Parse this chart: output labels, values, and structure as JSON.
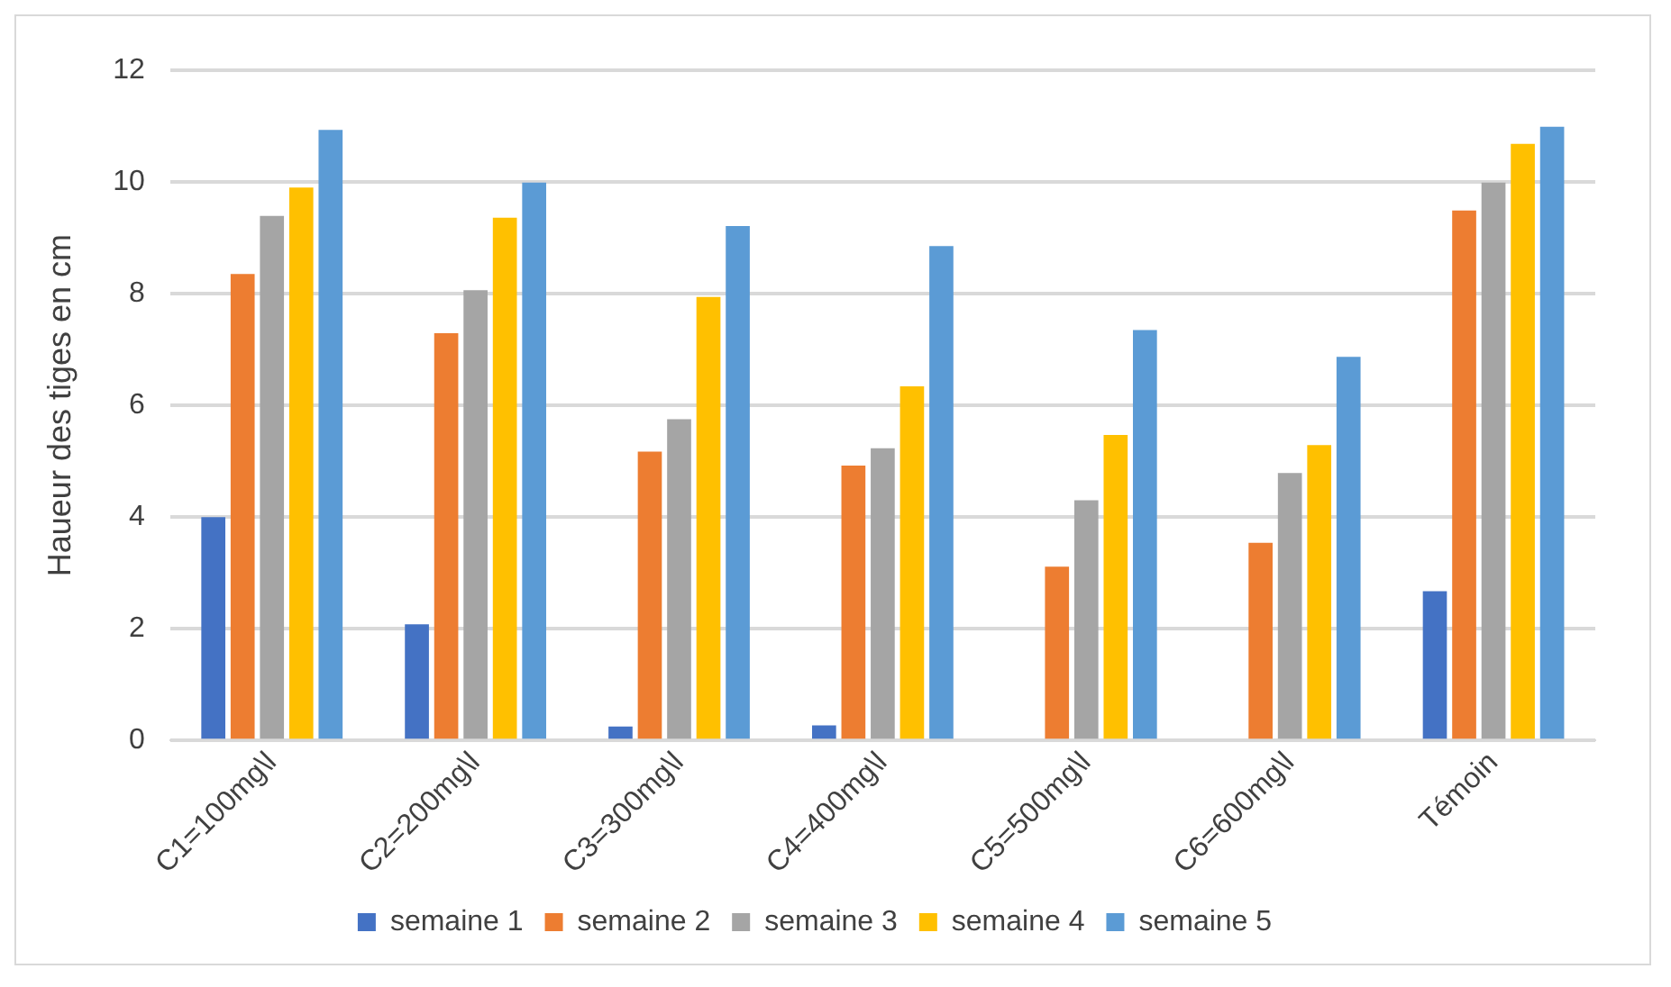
{
  "chart_data": {
    "type": "bar",
    "ylabel": "Haueur des tiges en cm",
    "categories": [
      "C1=100mg\\l",
      "C2=200mg\\l",
      "C3=300mg\\l",
      "C4=400mg\\l",
      "C5=500mg\\l",
      "C6=600mg\\l",
      "Témoin"
    ],
    "series": [
      {
        "name": "semaine 1",
        "color": "#4472c4",
        "values": [
          4.0,
          2.08,
          0.25,
          0.27,
          null,
          null,
          2.67
        ]
      },
      {
        "name": "semaine 2",
        "color": "#ed7d31",
        "values": [
          8.35,
          7.29,
          5.17,
          4.92,
          3.11,
          3.54,
          9.49
        ]
      },
      {
        "name": "semaine 3",
        "color": "#a5a5a5",
        "values": [
          9.39,
          8.06,
          5.75,
          5.23,
          4.3,
          4.79,
          9.99
        ]
      },
      {
        "name": "semaine 4",
        "color": "#ffc000",
        "values": [
          9.9,
          9.36,
          7.94,
          6.34,
          5.47,
          5.29,
          10.68
        ]
      },
      {
        "name": "semaine 5",
        "color": "#5b9bd5",
        "values": [
          10.93,
          9.99,
          9.21,
          8.85,
          7.35,
          6.87,
          10.99
        ]
      }
    ],
    "ylim": [
      0,
      12
    ],
    "yticks": [
      0,
      2,
      4,
      6,
      8,
      10,
      12
    ],
    "grid": "y",
    "legend": "bottom"
  }
}
